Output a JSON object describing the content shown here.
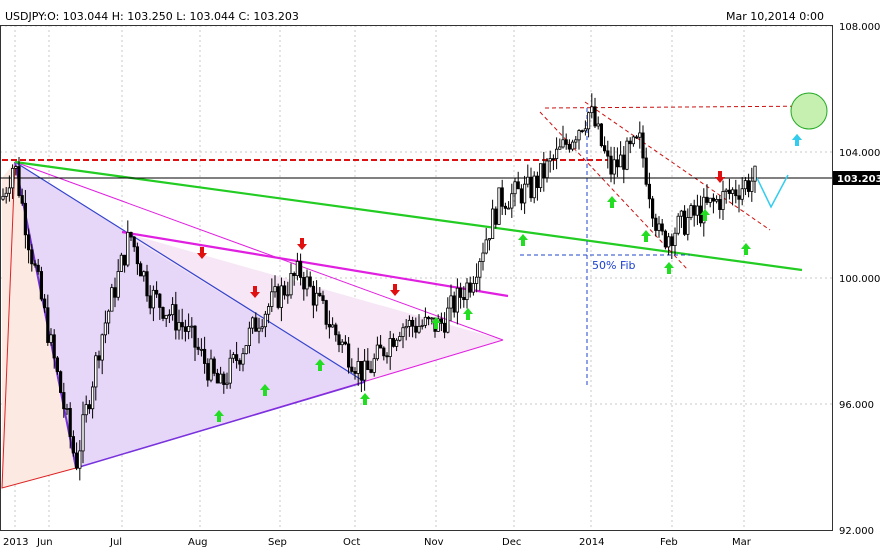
{
  "header": {
    "symbol": "USDJPY",
    "ohlc_text": "USDJPY:O: 103.044   H: 103.250   L: 103.044   C: 103.203",
    "date_text": "Mar 10,2014 0:00"
  },
  "colors": {
    "up_arrow": "#22dd22",
    "down_arrow": "#e01010",
    "magenta": "#e020e0",
    "green_line": "#22cc22",
    "blue_line": "#3344cc",
    "red_dashed": "#dd1111",
    "fib_dashed": "#2244cc",
    "projection": "#33ccee",
    "last_price_bg": "#000000"
  },
  "chart_data": {
    "type": "candlestick",
    "symbol": "USDJPY",
    "x_tick_labels": [
      "2013",
      "Jun",
      "Jul",
      "Aug",
      "Sep",
      "Oct",
      "Nov",
      "Dec",
      "2014",
      "Feb",
      "Mar"
    ],
    "y_tick_labels": [
      "92.000",
      "96.000",
      "100.000",
      "104.000",
      "108.000"
    ],
    "ylim": [
      92,
      108
    ],
    "grid": true,
    "last_price": 103.203,
    "last_price_label": "103.203",
    "fib_label": "50% Fib",
    "fib_level": 100.8,
    "resistance_level": 103.8,
    "candles_approx": [
      {
        "period": "2013 late May",
        "close": 102.5
      },
      {
        "period": "Jun (low)",
        "close": 94.0
      },
      {
        "period": "Jul",
        "close": 100.5
      },
      {
        "period": "Aug",
        "close": 96.5
      },
      {
        "period": "Sep",
        "close": 99.5
      },
      {
        "period": "early Oct (low)",
        "close": 96.8
      },
      {
        "period": "Nov",
        "close": 99.2
      },
      {
        "period": "Dec",
        "close": 103.5
      },
      {
        "period": "2014 early Jan (high)",
        "close": 105.3
      },
      {
        "period": "Feb (low)",
        "close": 101.0
      },
      {
        "period": "Mar",
        "close": 103.2
      }
    ],
    "annotations": {
      "up_arrows": 16,
      "down_arrows": 6
    }
  }
}
